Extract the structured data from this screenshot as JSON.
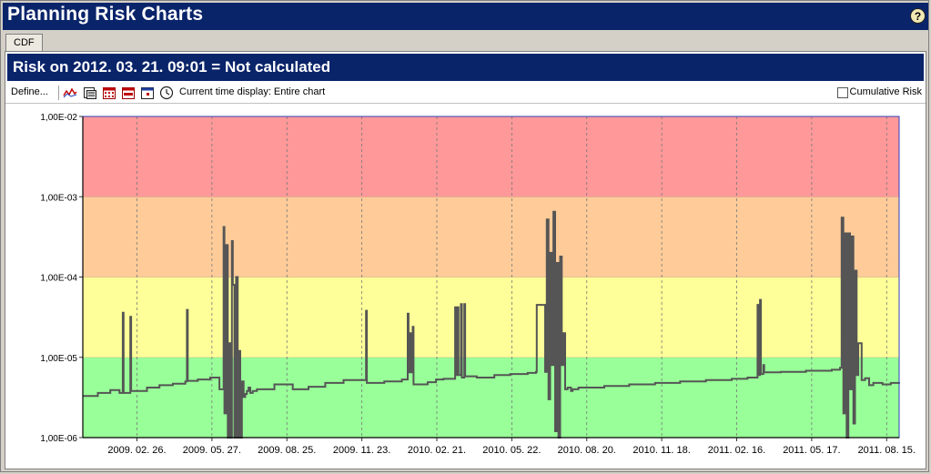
{
  "window": {
    "title": "Planning Risk Charts"
  },
  "help": {
    "label": "?"
  },
  "tabs": [
    {
      "label": "CDF"
    }
  ],
  "risk_header": {
    "text": "Risk on 2012. 03. 21. 09:01 = Not calculated"
  },
  "toolbar": {
    "define_label": "Define...",
    "current_time": "Current time display: Entire chart",
    "cumulative_label": "Cumulative Risk",
    "cumulative_checked": false,
    "icons": [
      "line-chart-icon",
      "print-preview-icon",
      "calendar-icon",
      "calendar-week-icon",
      "calendar-day-icon",
      "clock-icon"
    ]
  },
  "chart_data": {
    "type": "line",
    "yscale": "log",
    "ylim": [
      1e-06,
      0.01
    ],
    "y_ticks": [
      "1,00E-02",
      "1,00E-03",
      "1,00E-04",
      "1,00E-05",
      "1,00E-06"
    ],
    "x_ticks": [
      "2009. 02. 26.",
      "2009. 05. 27.",
      "2009. 08. 25.",
      "2009. 11. 23.",
      "2010. 02. 21.",
      "2010. 05. 22.",
      "2010. 08. 20.",
      "2010. 11. 18.",
      "2011. 02. 16.",
      "2011. 05. 17.",
      "2011. 08. 15."
    ],
    "xlim": [
      "2008-12-23",
      "2011-08-30"
    ],
    "grid": {
      "vertical": true,
      "horizontal": false
    },
    "bands": [
      {
        "from": 1e-06,
        "to": 1e-05,
        "color": "#99ff99"
      },
      {
        "from": 1e-05,
        "to": 0.0001,
        "color": "#ffff99"
      },
      {
        "from": 0.0001,
        "to": 0.001,
        "color": "#ffcc99"
      },
      {
        "from": 0.001,
        "to": 0.01,
        "color": "#ff9999"
      }
    ],
    "line_color": "#555555",
    "series": [
      {
        "x": [
          "2008-12-23",
          "2009-01-10",
          "2009-01-25",
          "2009-02-05",
          "2009-02-09",
          "2009-02-10",
          "2009-02-18",
          "2009-02-19",
          "2009-02-24",
          "2009-02-25",
          "2009-03-10",
          "2009-03-25",
          "2009-04-10",
          "2009-04-25",
          "2009-04-27",
          "2009-04-28",
          "2009-05-10",
          "2009-05-25",
          "2009-06-05",
          "2009-06-10",
          "2009-06-11",
          "2009-06-13",
          "2009-06-15",
          "2009-06-16",
          "2009-06-18",
          "2009-06-20",
          "2009-06-21",
          "2009-06-23",
          "2009-06-25",
          "2009-06-27",
          "2009-06-28",
          "2009-06-30",
          "2009-07-02",
          "2009-07-04",
          "2009-07-06",
          "2009-07-08",
          "2009-07-10",
          "2009-07-12",
          "2009-07-15",
          "2009-07-20",
          "2009-08-10",
          "2009-09-01",
          "2009-09-20",
          "2009-10-10",
          "2009-11-01",
          "2009-11-28",
          "2009-11-29",
          "2009-12-20",
          "2010-01-10",
          "2010-01-17",
          "2010-01-18",
          "2010-01-20",
          "2010-01-21",
          "2010-01-23",
          "2010-01-24",
          "2010-02-10",
          "2010-02-20",
          "2010-03-01",
          "2010-03-15",
          "2010-03-16",
          "2010-03-18",
          "2010-03-19",
          "2010-03-22",
          "2010-03-23",
          "2010-03-26",
          "2010-03-27",
          "2010-04-10",
          "2010-05-01",
          "2010-05-20",
          "2010-06-10",
          "2010-06-20",
          "2010-06-21",
          "2010-07-01",
          "2010-07-03",
          "2010-07-05",
          "2010-07-07",
          "2010-07-09",
          "2010-07-11",
          "2010-07-13",
          "2010-07-15",
          "2010-07-17",
          "2010-07-19",
          "2010-07-21",
          "2010-07-23",
          "2010-07-25",
          "2010-07-28",
          "2010-08-01",
          "2010-08-03",
          "2010-08-10",
          "2010-09-10",
          "2010-10-10",
          "2010-11-10",
          "2010-12-10",
          "2011-01-10",
          "2011-02-10",
          "2011-03-01",
          "2011-03-13",
          "2011-03-14",
          "2011-03-16",
          "2011-03-17",
          "2011-03-20",
          "2011-03-21",
          "2011-04-10",
          "2011-05-10",
          "2011-06-10",
          "2011-06-20",
          "2011-06-22",
          "2011-06-24",
          "2011-06-26",
          "2011-06-28",
          "2011-06-30",
          "2011-07-02",
          "2011-07-04",
          "2011-07-06",
          "2011-07-08",
          "2011-07-10",
          "2011-07-12",
          "2011-07-16",
          "2011-07-20",
          "2011-07-25",
          "2011-07-30",
          "2011-08-10",
          "2011-08-20",
          "2011-08-30"
        ],
        "y": [
          3.3e-06,
          3.6e-06,
          3.9e-06,
          3.6e-06,
          3.6e-05,
          3.6e-06,
          3.2e-05,
          3.8e-06,
          3.8e-06,
          3.8e-06,
          4.2e-06,
          4.5e-06,
          4.7e-06,
          5e-06,
          3.9e-05,
          5.1e-06,
          5.3e-06,
          5.6e-06,
          4e-06,
          0.00042,
          2e-06,
          0.00025,
          1e-06,
          1.5e-05,
          1e-06,
          0.00028,
          8e-05,
          1e-06,
          0.0001,
          1e-06,
          1.2e-05,
          1e-06,
          5e-06,
          3.2e-06,
          3.5e-06,
          3.8e-06,
          4.2e-06,
          3.6e-06,
          3.8e-06,
          4e-06,
          4.6e-06,
          4e-06,
          4.3e-06,
          4.8e-06,
          5.2e-06,
          3.8e-05,
          4.8e-06,
          5e-06,
          5.3e-06,
          3.5e-05,
          6.5e-06,
          2e-05,
          6.5e-06,
          2.4e-05,
          4.6e-06,
          4.9e-06,
          5.3e-06,
          5.4e-06,
          4.2e-05,
          6e-06,
          4.2e-05,
          6e-06,
          4.6e-05,
          5.6e-06,
          4.6e-05,
          5.8e-06,
          5.6e-06,
          6e-06,
          6.2e-06,
          6.4e-06,
          6.6e-06,
          4.5e-05,
          6.6e-06,
          0.00052,
          3e-06,
          0.0002,
          8e-06,
          0.00065,
          1.2e-06,
          0.00015,
          1e-06,
          0.00018,
          8e-06,
          2e-05,
          4e-06,
          4.2e-06,
          3.8e-06,
          4e-06,
          4.2e-06,
          4.4e-06,
          4.6e-06,
          4.8e-06,
          5e-06,
          5.2e-06,
          5.4e-06,
          5.6e-06,
          4.5e-05,
          6e-06,
          5.2e-05,
          6.2e-06,
          8e-06,
          6.5e-06,
          6.6e-06,
          6.8e-06,
          7e-06,
          7.4e-06,
          0.00055,
          2e-06,
          0.00035,
          1e-06,
          0.00035,
          4e-06,
          0.00032,
          1.5e-06,
          0.00012,
          6e-06,
          1.5e-05,
          5.2e-06,
          5.5e-06,
          4.5e-06,
          4.8e-06,
          4.6e-06,
          4.8e-06,
          4.9e-06
        ]
      }
    ]
  }
}
